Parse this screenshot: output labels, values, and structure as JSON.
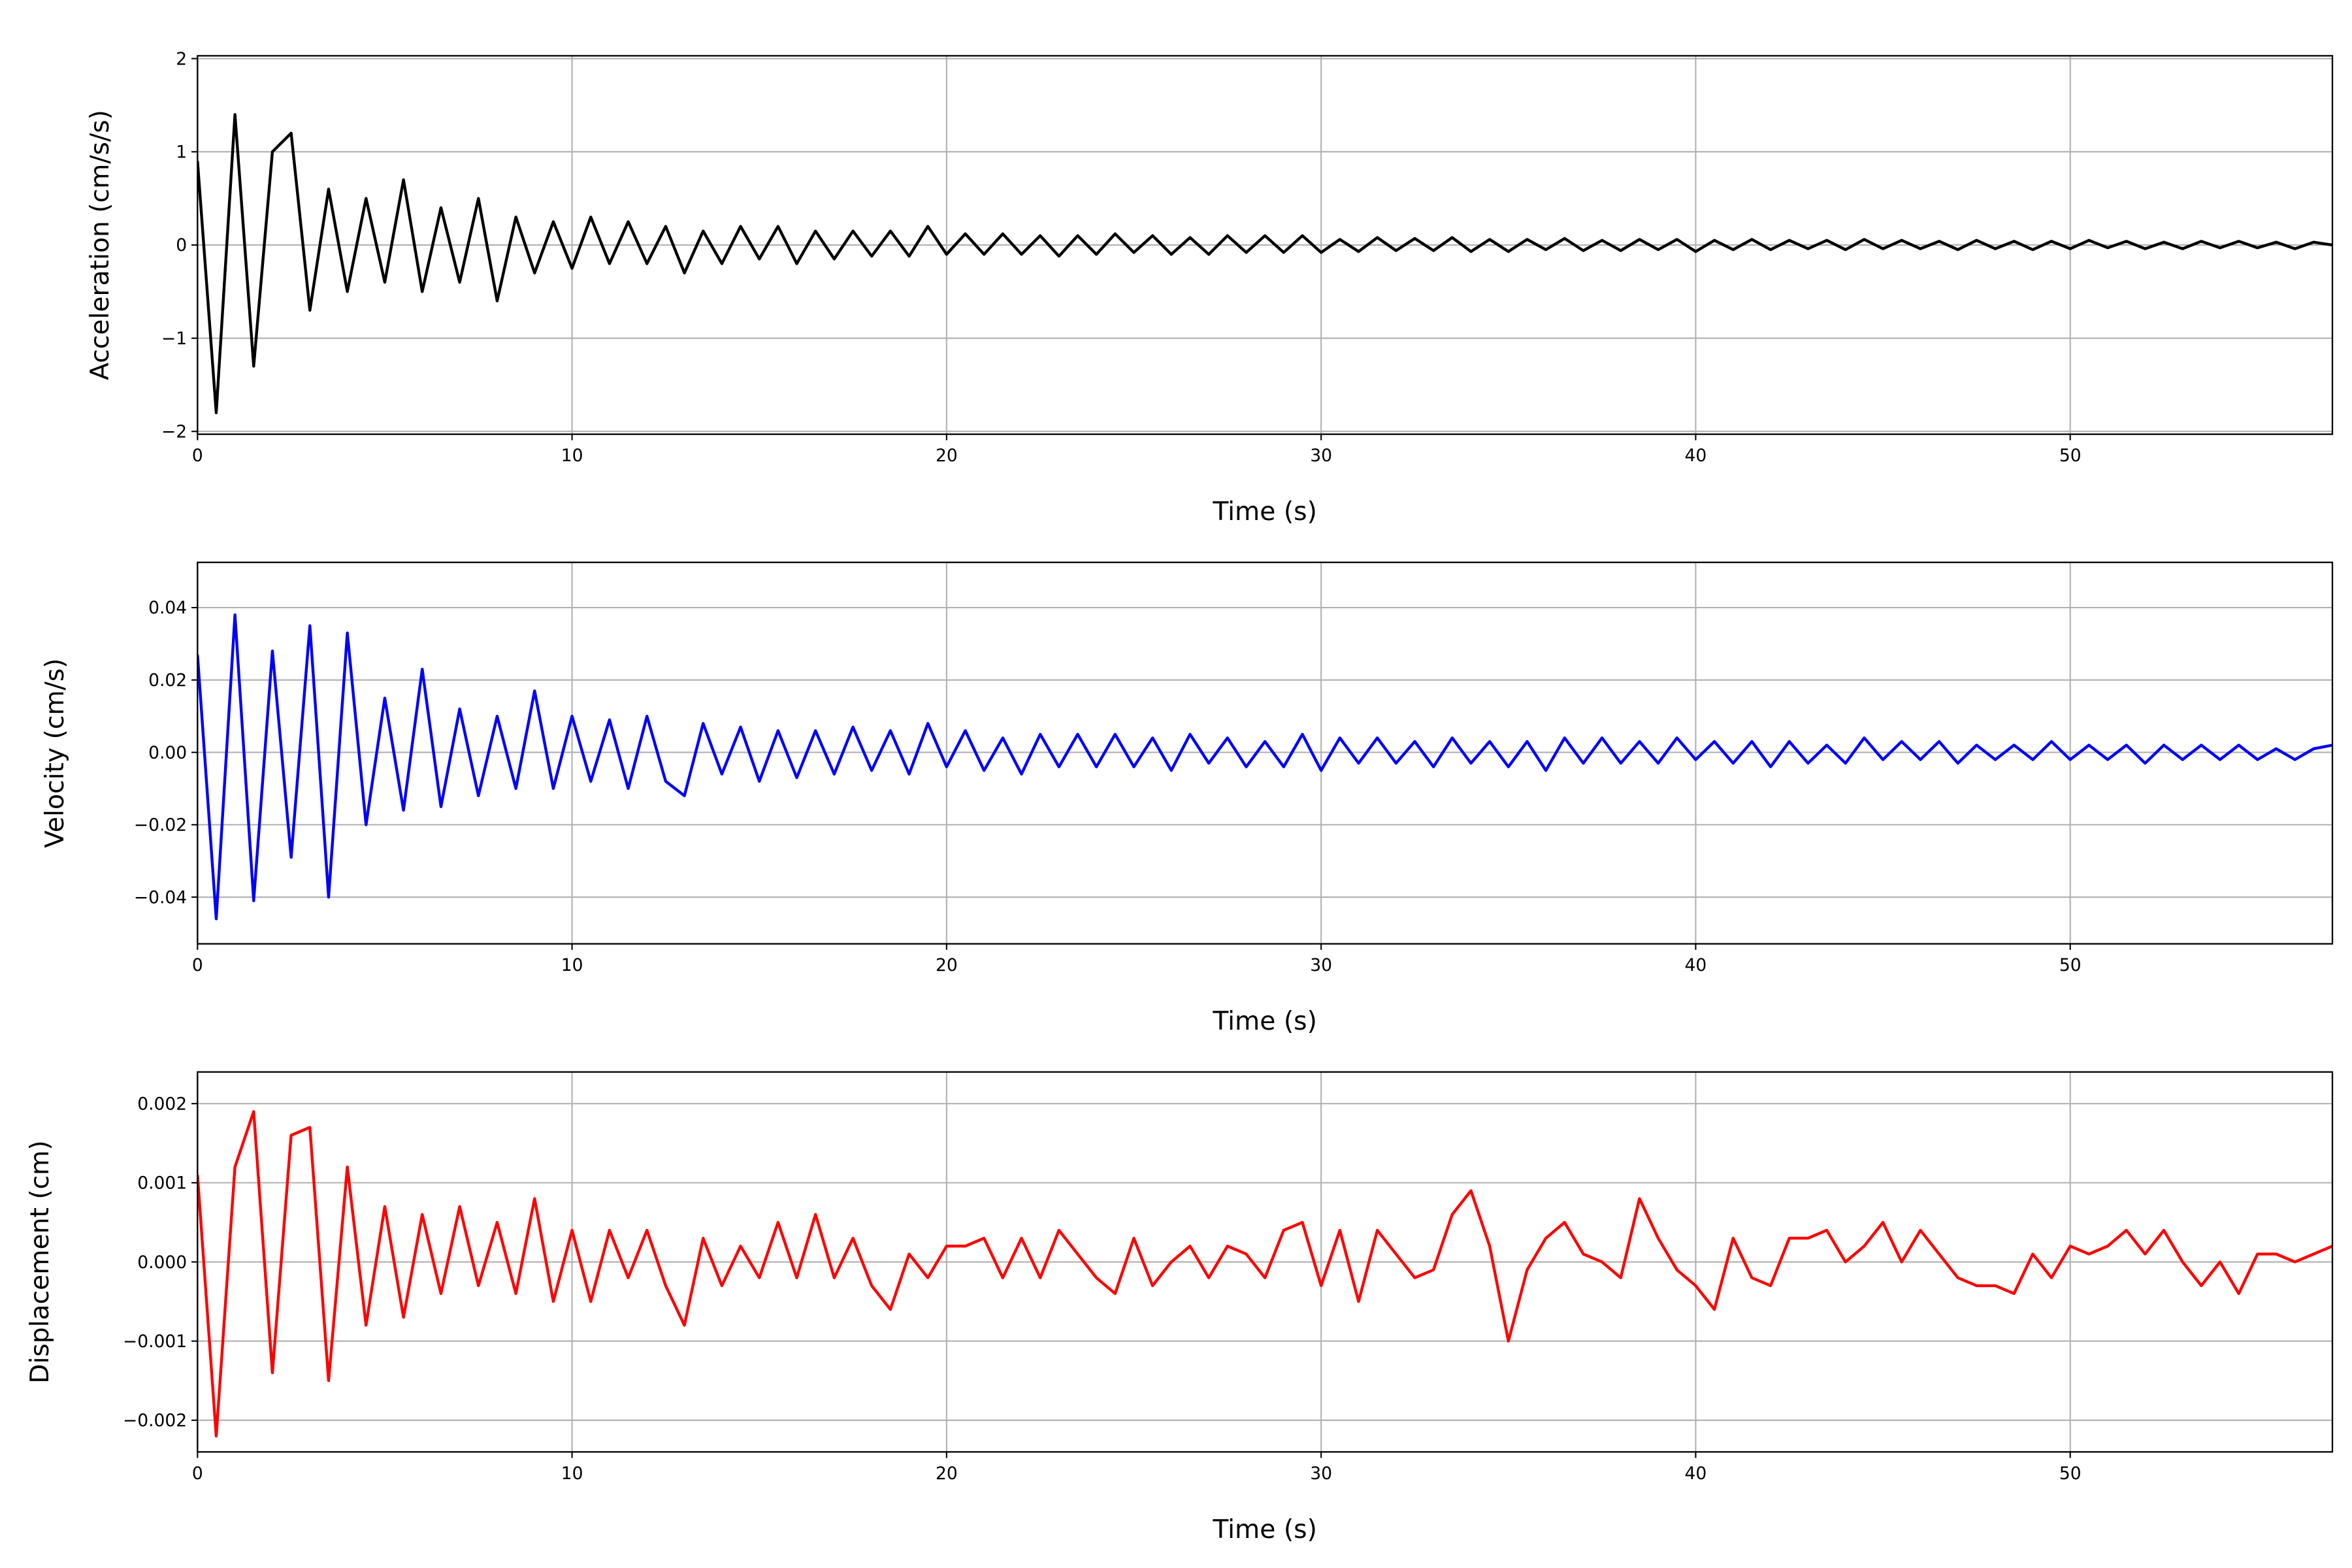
{
  "chart_data": [
    {
      "type": "line",
      "title": "",
      "xlabel": "Time (s)",
      "ylabel": "Acceleration (cm/s/s)",
      "xlim": [
        0,
        57
      ],
      "ylim": [
        -2.03,
        2.03
      ],
      "xticks": [
        0,
        10,
        20,
        30,
        40,
        50
      ],
      "xtick_labels": [
        "0",
        "10",
        "20",
        "30",
        "40",
        "50"
      ],
      "yticks": [
        -2,
        -1,
        0,
        1,
        2
      ],
      "ytick_labels": [
        "−2",
        "−1",
        "0",
        "1",
        "2"
      ],
      "grid": true,
      "color": "#000000",
      "series": [
        {
          "name": "Acceleration",
          "t_start": 0,
          "dt": 0.5,
          "values": [
            0.9,
            -1.8,
            1.4,
            -1.3,
            1.0,
            1.2,
            -0.7,
            0.6,
            -0.5,
            0.5,
            -0.4,
            0.7,
            -0.5,
            0.4,
            -0.4,
            0.5,
            -0.6,
            0.3,
            -0.3,
            0.25,
            -0.25,
            0.3,
            -0.2,
            0.25,
            -0.2,
            0.2,
            -0.3,
            0.15,
            -0.2,
            0.2,
            -0.15,
            0.2,
            -0.2,
            0.15,
            -0.15,
            0.15,
            -0.12,
            0.15,
            -0.12,
            0.2,
            -0.1,
            0.12,
            -0.1,
            0.12,
            -0.1,
            0.1,
            -0.12,
            0.1,
            -0.1,
            0.12,
            -0.08,
            0.1,
            -0.1,
            0.08,
            -0.1,
            0.1,
            -0.08,
            0.1,
            -0.08,
            0.1,
            -0.08,
            0.06,
            -0.07,
            0.08,
            -0.06,
            0.07,
            -0.06,
            0.08,
            -0.07,
            0.06,
            -0.07,
            0.06,
            -0.05,
            0.07,
            -0.06,
            0.05,
            -0.06,
            0.06,
            -0.05,
            0.06,
            -0.07,
            0.05,
            -0.05,
            0.06,
            -0.05,
            0.05,
            -0.04,
            0.05,
            -0.05,
            0.06,
            -0.04,
            0.05,
            -0.04,
            0.04,
            -0.05,
            0.05,
            -0.04,
            0.04,
            -0.05,
            0.04,
            -0.04,
            0.05,
            -0.03,
            0.04,
            -0.04,
            0.03,
            -0.04,
            0.04,
            -0.03,
            0.04,
            -0.03,
            0.03,
            -0.04,
            0.03,
            0.0
          ]
        }
      ]
    },
    {
      "type": "line",
      "title": "",
      "xlabel": "Time (s)",
      "ylabel": "Velocity (cm/s)",
      "xlim": [
        0,
        57
      ],
      "ylim": [
        -0.0529,
        0.0525
      ],
      "xticks": [
        0,
        10,
        20,
        30,
        40,
        50
      ],
      "xtick_labels": [
        "0",
        "10",
        "20",
        "30",
        "40",
        "50"
      ],
      "yticks": [
        -0.04,
        -0.02,
        0.0,
        0.02,
        0.04
      ],
      "ytick_labels": [
        "−0.04",
        "−0.02",
        "0.00",
        "0.02",
        "0.04"
      ],
      "grid": true,
      "color": "#0000ff",
      "series": [
        {
          "name": "Velocity",
          "t_start": 0,
          "dt": 0.5,
          "values": [
            0.027,
            -0.046,
            0.038,
            -0.041,
            0.028,
            -0.029,
            0.035,
            -0.04,
            0.033,
            -0.02,
            0.015,
            -0.016,
            0.023,
            -0.015,
            0.012,
            -0.012,
            0.01,
            -0.01,
            0.017,
            -0.01,
            0.01,
            -0.008,
            0.009,
            -0.01,
            0.01,
            -0.008,
            -0.012,
            0.008,
            -0.006,
            0.007,
            -0.008,
            0.006,
            -0.007,
            0.006,
            -0.006,
            0.007,
            -0.005,
            0.006,
            -0.006,
            0.008,
            -0.004,
            0.006,
            -0.005,
            0.004,
            -0.006,
            0.005,
            -0.004,
            0.005,
            -0.004,
            0.005,
            -0.004,
            0.004,
            -0.005,
            0.005,
            -0.003,
            0.004,
            -0.004,
            0.003,
            -0.004,
            0.005,
            -0.005,
            0.004,
            -0.003,
            0.004,
            -0.003,
            0.003,
            -0.004,
            0.004,
            -0.003,
            0.003,
            -0.004,
            0.003,
            -0.005,
            0.004,
            -0.003,
            0.004,
            -0.003,
            0.003,
            -0.003,
            0.004,
            -0.002,
            0.003,
            -0.003,
            0.003,
            -0.004,
            0.003,
            -0.003,
            0.002,
            -0.003,
            0.004,
            -0.002,
            0.003,
            -0.002,
            0.003,
            -0.003,
            0.002,
            -0.002,
            0.002,
            -0.002,
            0.003,
            -0.002,
            0.002,
            -0.002,
            0.002,
            -0.003,
            0.002,
            -0.002,
            0.002,
            -0.002,
            0.002,
            -0.002,
            0.001,
            -0.002,
            0.001,
            0.002
          ]
        }
      ]
    },
    {
      "type": "line",
      "title": "",
      "xlabel": "Time (s)",
      "ylabel": "Displacement (cm)",
      "xlim": [
        0,
        57
      ],
      "ylim": [
        -0.0024,
        0.0024
      ],
      "xticks": [
        0,
        10,
        20,
        30,
        40,
        50
      ],
      "xtick_labels": [
        "0",
        "10",
        "20",
        "30",
        "40",
        "50"
      ],
      "yticks": [
        -0.002,
        -0.001,
        0.0,
        0.001,
        0.002
      ],
      "ytick_labels": [
        "−0.002",
        "−0.001",
        "0.000",
        "0.001",
        "0.002"
      ],
      "grid": true,
      "color": "#ff0000",
      "series": [
        {
          "name": "Displacement",
          "t_start": 0,
          "dt": 0.5,
          "values": [
            0.0011,
            -0.0022,
            0.0012,
            0.0019,
            -0.0014,
            0.0016,
            0.0017,
            -0.0015,
            0.0012,
            -0.0008,
            0.0007,
            -0.0007,
            0.0006,
            -0.0004,
            0.0007,
            -0.0003,
            0.0005,
            -0.0004,
            0.0008,
            -0.0005,
            0.0004,
            -0.0005,
            0.0004,
            -0.0002,
            0.0004,
            -0.0003,
            -0.0008,
            0.0003,
            -0.0003,
            0.0002,
            -0.0002,
            0.0005,
            -0.0002,
            0.0006,
            -0.0002,
            0.0003,
            -0.0003,
            -0.0006,
            0.0001,
            -0.0002,
            0.0002,
            0.0002,
            0.0003,
            -0.0002,
            0.0003,
            -0.0002,
            0.0004,
            0.0001,
            -0.0002,
            -0.0004,
            0.0003,
            -0.0003,
            0.0,
            0.0002,
            -0.0002,
            0.0002,
            0.0001,
            -0.0002,
            0.0004,
            0.0005,
            -0.0003,
            0.0004,
            -0.0005,
            0.0004,
            0.0001,
            -0.0002,
            -0.0001,
            0.0006,
            0.0009,
            0.0002,
            -0.001,
            -0.0001,
            0.0003,
            0.0005,
            0.0001,
            0.0,
            -0.0002,
            0.0008,
            0.0003,
            -0.0001,
            -0.0003,
            -0.0006,
            0.0003,
            -0.0002,
            -0.0003,
            0.0003,
            0.0003,
            0.0004,
            0.0,
            0.0002,
            0.0005,
            0.0,
            0.0004,
            0.0001,
            -0.0002,
            -0.0003,
            -0.0003,
            -0.0004,
            0.0001,
            -0.0002,
            0.0002,
            0.0001,
            0.0002,
            0.0004,
            0.0001,
            0.0004,
            0.0,
            -0.0003,
            0.0,
            -0.0004,
            0.0001,
            0.0001,
            0.0,
            0.0001,
            0.0002
          ]
        }
      ]
    }
  ]
}
